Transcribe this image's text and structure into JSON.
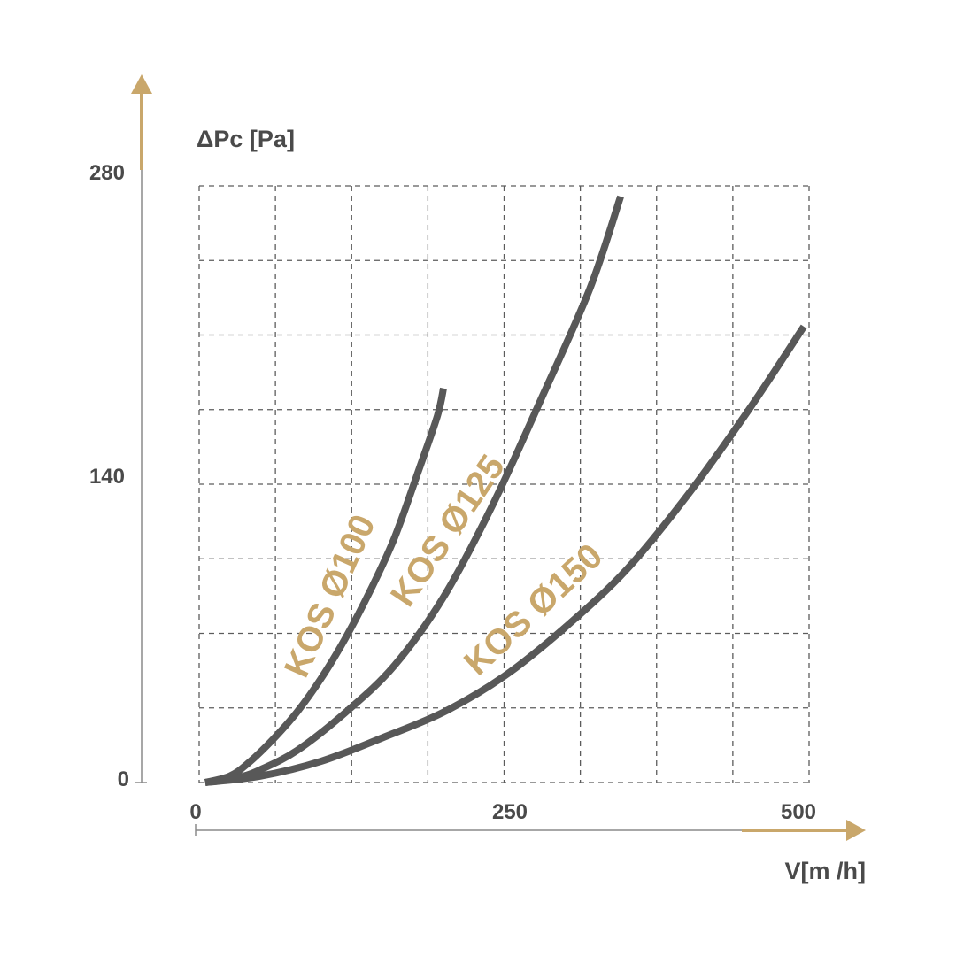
{
  "chart_data": {
    "type": "line",
    "xlabel": "V[m /h]",
    "ylabel": "ΔPc [Pa]",
    "xlim": [
      0,
      500
    ],
    "ylim": [
      0,
      280
    ],
    "x_ticks": [
      "0",
      "250",
      "500"
    ],
    "y_ticks": [
      "0",
      "140",
      "280"
    ],
    "grid": true,
    "accent_color": "#c9a76b",
    "line_color": "#585858",
    "series": [
      {
        "name": "KOS Ø100",
        "x": [
          5,
          25,
          40,
          60,
          80,
          100,
          120,
          140,
          160,
          180,
          195,
          200
        ],
        "y": [
          0,
          3,
          9,
          20,
          33,
          49,
          68,
          90,
          115,
          147,
          172,
          185
        ]
      },
      {
        "name": "KOS Ø125",
        "x": [
          5,
          30,
          50,
          80,
          120,
          160,
          200,
          240,
          280,
          320,
          345
        ],
        "y": [
          0,
          2,
          6,
          15,
          33,
          55,
          87,
          130,
          180,
          232,
          275
        ]
      },
      {
        "name": "KOS Ø150",
        "x": [
          5,
          50,
          100,
          150,
          200,
          250,
          300,
          350,
          400,
          450,
          495
        ],
        "y": [
          0,
          3,
          10,
          21,
          33,
          50,
          73,
          100,
          135,
          175,
          214
        ]
      }
    ]
  }
}
